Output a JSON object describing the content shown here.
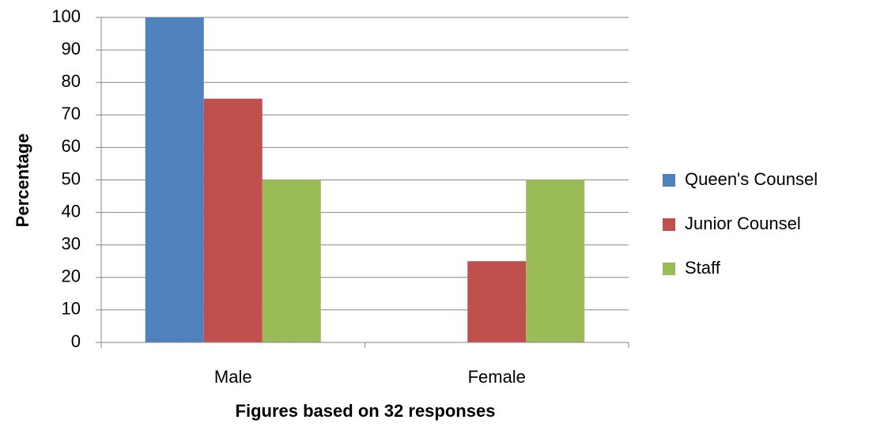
{
  "chart_data": {
    "type": "bar",
    "categories": [
      "Male",
      "Female"
    ],
    "series": [
      {
        "name": "Queen's Counsel",
        "values": [
          100,
          0
        ],
        "color": "#4F81BD"
      },
      {
        "name": "Junior Counsel",
        "values": [
          75,
          25
        ],
        "color": "#C0504D"
      },
      {
        "name": "Staff",
        "values": [
          50,
          50
        ],
        "color": "#9BBB59"
      }
    ],
    "xlabel": "Figures based on 32 responses",
    "ylabel": "Percentage",
    "ylim": [
      0,
      100
    ],
    "yticks": [
      0,
      10,
      20,
      30,
      40,
      50,
      60,
      70,
      80,
      90,
      100
    ],
    "grid": true,
    "legend": "right"
  }
}
